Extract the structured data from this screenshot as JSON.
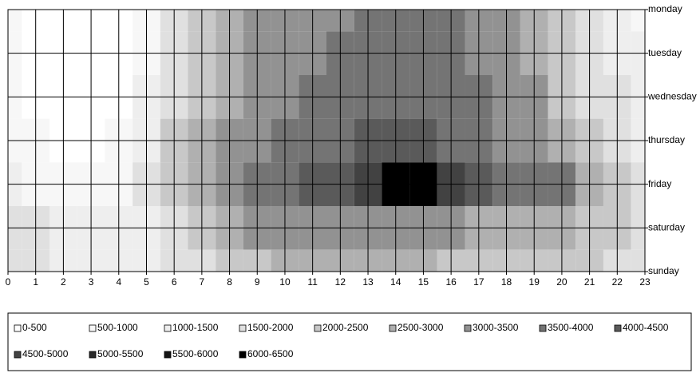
{
  "chart_data": {
    "type": "contour",
    "categories": [
      "monday",
      "tuesday",
      "wednesday",
      "thursday",
      "friday",
      "saturday",
      "sunday"
    ],
    "x": [
      0,
      1,
      2,
      3,
      4,
      5,
      6,
      7,
      8,
      9,
      10,
      11,
      12,
      13,
      14,
      15,
      16,
      17,
      18,
      19,
      20,
      21,
      22,
      23
    ],
    "xlim": [
      0,
      23
    ],
    "xticks": [
      0,
      1,
      2,
      3,
      4,
      5,
      6,
      7,
      8,
      9,
      10,
      11,
      12,
      13,
      14,
      15,
      16,
      17,
      18,
      19,
      20,
      21,
      22,
      23
    ],
    "values": [
      [
        600,
        400,
        300,
        250,
        300,
        900,
        1600,
        2200,
        2700,
        3000,
        3200,
        3300,
        3400,
        3500,
        3700,
        3600,
        3700,
        3300,
        3100,
        2800,
        2200,
        1700,
        1300,
        900
      ],
      [
        700,
        350,
        250,
        200,
        300,
        900,
        1700,
        2300,
        2800,
        3100,
        3300,
        3400,
        3500,
        3700,
        3800,
        3600,
        3800,
        3400,
        3200,
        2900,
        2300,
        1800,
        1400,
        1000
      ],
      [
        800,
        400,
        300,
        250,
        350,
        1000,
        1800,
        2400,
        2900,
        3300,
        3400,
        3600,
        3600,
        3800,
        3900,
        3700,
        3900,
        3600,
        3300,
        3000,
        2400,
        1900,
        1500,
        1100
      ],
      [
        900,
        600,
        400,
        300,
        500,
        1200,
        2000,
        2600,
        3100,
        3400,
        3500,
        3600,
        3700,
        4000,
        4400,
        4300,
        3900,
        3600,
        3400,
        3100,
        2600,
        2100,
        1700,
        1300
      ],
      [
        1000,
        800,
        700,
        600,
        900,
        1500,
        2200,
        2700,
        3200,
        3600,
        3900,
        4000,
        4200,
        4600,
        6200,
        6000,
        4800,
        4100,
        3900,
        3800,
        3600,
        2600,
        2100,
        1700
      ],
      [
        1800,
        1500,
        1200,
        1000,
        1100,
        1400,
        1800,
        2200,
        2600,
        3000,
        3300,
        3200,
        3200,
        3100,
        3100,
        3100,
        3000,
        2900,
        2900,
        2800,
        2600,
        2300,
        2100,
        1900
      ],
      [
        1800,
        1500,
        1300,
        1100,
        1100,
        1300,
        1600,
        1900,
        2200,
        2400,
        2500,
        2500,
        2500,
        2500,
        2500,
        2500,
        2400,
        2300,
        2300,
        2200,
        2100,
        2000,
        1900,
        1800
      ]
    ],
    "levels": [
      0,
      500,
      1000,
      1500,
      2000,
      2500,
      3000,
      3500,
      4000,
      4500,
      5000,
      5500,
      6000,
      6500
    ],
    "legend": [
      "0-500",
      "500-1000",
      "1000-1500",
      "1500-2000",
      "2000-2500",
      "2500-3000",
      "3000-3500",
      "3500-4000",
      "4000-4500",
      "4500-5000",
      "5000-5500",
      "5500-6000",
      "6000-6500"
    ],
    "colors": [
      "#ffffff",
      "#f7f7f7",
      "#eeeeee",
      "#e0e0e0",
      "#c8c8c8",
      "#b0b0b0",
      "#929292",
      "#747474",
      "#5a5a5a",
      "#424242",
      "#2a2a2a",
      "#141414",
      "#000000"
    ],
    "grid": true
  }
}
